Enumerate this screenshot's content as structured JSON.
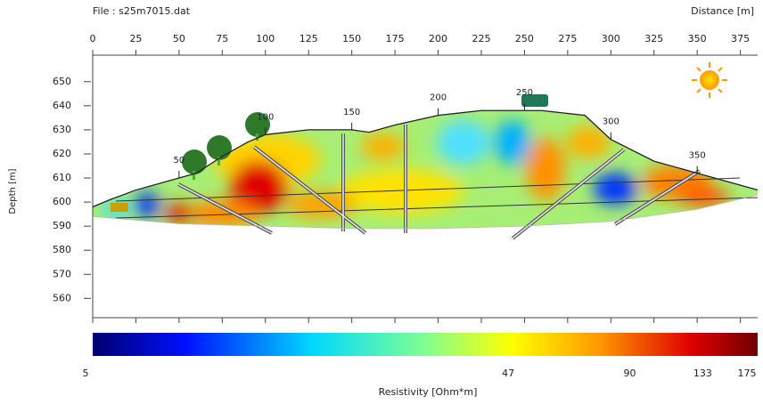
{
  "chart_data": {
    "type": "section",
    "title": "File : s25m7015.dat",
    "xlabel": "Distance [m]",
    "ylabel": "Depth [m]",
    "xlim": [
      0,
      385
    ],
    "ylim": [
      552,
      661
    ],
    "xticks": [
      0,
      25,
      50,
      75,
      100,
      125,
      150,
      175,
      200,
      225,
      250,
      275,
      300,
      325,
      350,
      375
    ],
    "yticks": [
      560,
      570,
      580,
      590,
      600,
      610,
      620,
      630,
      640,
      650
    ],
    "surface": {
      "x": [
        0,
        10,
        25,
        50,
        60,
        75,
        90,
        100,
        125,
        150,
        160,
        175,
        200,
        225,
        260,
        285,
        300,
        325,
        350,
        385
      ],
      "y": [
        598,
        601,
        605,
        610,
        612,
        619,
        625,
        628,
        630,
        630,
        629,
        632,
        636,
        638,
        638,
        636,
        626,
        617,
        612,
        605
      ]
    },
    "base": {
      "x": [
        0,
        50,
        100,
        150,
        200,
        250,
        300,
        350,
        385
      ],
      "y": [
        594,
        591,
        590,
        589,
        589,
        590,
        592,
        597,
        603
      ]
    },
    "profile_labels": [
      50,
      100,
      150,
      200,
      250,
      300,
      350
    ],
    "colorbar": {
      "label": "Resistivity [Ohm*m]",
      "lim": [
        5,
        175
      ],
      "ticks": [
        5,
        47,
        90,
        133,
        175
      ],
      "log": true
    }
  }
}
